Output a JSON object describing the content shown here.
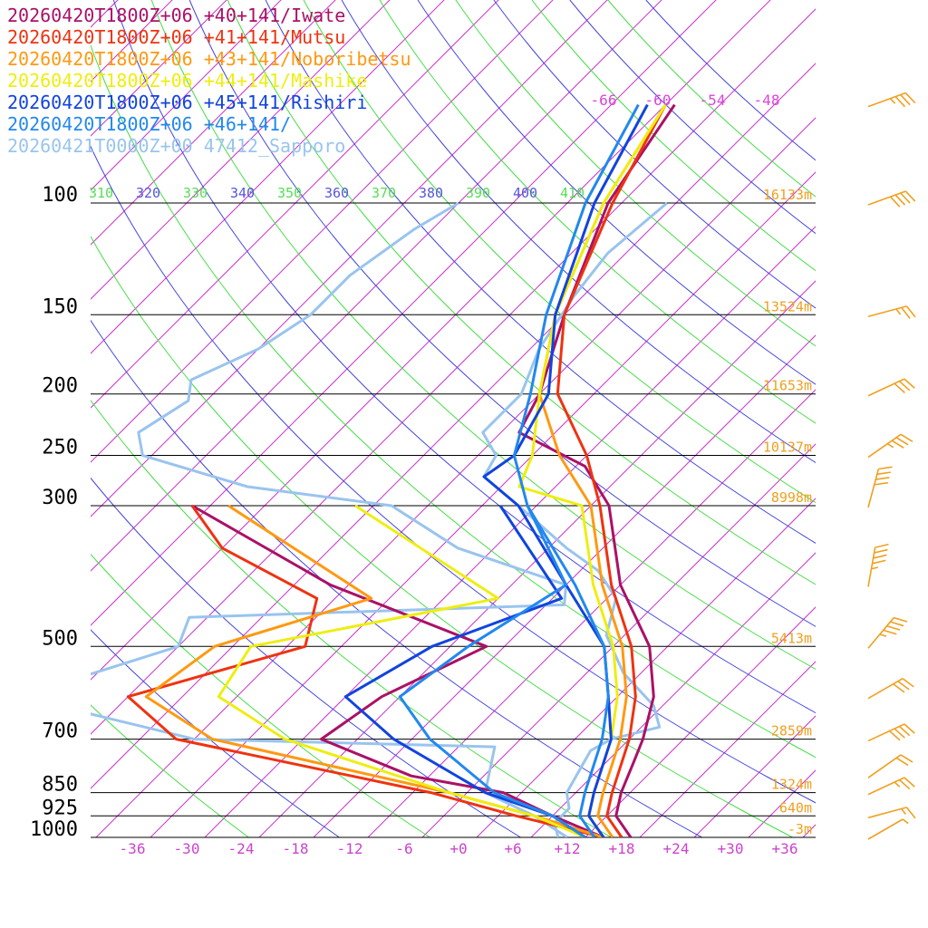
{
  "chart_data": {
    "type": "line",
    "title": "",
    "legend_placement": "top-left",
    "pressure_levels": [
      100,
      150,
      200,
      250,
      300,
      500,
      700,
      850,
      925,
      1000
    ],
    "pressure_axis": "log",
    "temperature_ticks": [
      "-36",
      "-30",
      "-24",
      "-18",
      "-12",
      "-6",
      "+0",
      "+6",
      "+12",
      "+18",
      "+24",
      "+30",
      "+36"
    ],
    "isotherm_top_labels": [
      "-66",
      "-60",
      "-54",
      "-48"
    ],
    "theta_labels": [
      {
        "text": "310",
        "color": "#55dd55"
      },
      {
        "text": "320",
        "color": "#5555dd"
      },
      {
        "text": "330",
        "color": "#55dd55"
      },
      {
        "text": "340",
        "color": "#5555dd"
      },
      {
        "text": "350",
        "color": "#55dd55"
      },
      {
        "text": "360",
        "color": "#5555dd"
      },
      {
        "text": "370",
        "color": "#55dd55"
      },
      {
        "text": "380",
        "color": "#5555dd"
      },
      {
        "text": "390",
        "color": "#55dd55"
      },
      {
        "text": "400",
        "color": "#5555dd"
      },
      {
        "text": "410",
        "color": "#55dd55"
      }
    ],
    "height_labels": [
      {
        "p": 100,
        "text": "16133m"
      },
      {
        "p": 150,
        "text": "13524m"
      },
      {
        "p": 200,
        "text": "11653m"
      },
      {
        "p": 250,
        "text": "10137m"
      },
      {
        "p": 300,
        "text": "8998m"
      },
      {
        "p": 500,
        "text": "5413m"
      },
      {
        "p": 700,
        "text": "2859m"
      },
      {
        "p": 850,
        "text": "1324m"
      },
      {
        "p": 925,
        "text": "640m"
      },
      {
        "p": 1000,
        "text": "-3m"
      }
    ],
    "series": [
      {
        "name": "20260420T1800Z+06 +40+141/Iwate",
        "color": "#aa1166",
        "temperature": [
          [
            70,
            -57
          ],
          [
            100,
            -53.5
          ],
          [
            150,
            -46
          ],
          [
            200,
            -40
          ],
          [
            230,
            -38
          ],
          [
            260,
            -27
          ],
          [
            300,
            -20
          ],
          [
            400,
            -10
          ],
          [
            500,
            0
          ],
          [
            600,
            6
          ],
          [
            700,
            9.5
          ],
          [
            760,
            11
          ],
          [
            850,
            13
          ],
          [
            925,
            15
          ],
          [
            1000,
            19
          ]
        ],
        "dewpoint": [
          [
            300,
            -66
          ],
          [
            400,
            -42
          ],
          [
            500,
            -18
          ],
          [
            600,
            -24
          ],
          [
            700,
            -26
          ],
          [
            800,
            -12
          ],
          [
            850,
            0
          ],
          [
            925,
            8
          ],
          [
            1000,
            16
          ]
        ]
      },
      {
        "name": "20260420T1800Z+06 +41+141/Mutsu",
        "color": "#ee3311",
        "temperature": [
          [
            70,
            -58
          ],
          [
            100,
            -53
          ],
          [
            150,
            -46
          ],
          [
            200,
            -38
          ],
          [
            250,
            -28
          ],
          [
            300,
            -21
          ],
          [
            400,
            -11
          ],
          [
            500,
            -2
          ],
          [
            600,
            4
          ],
          [
            700,
            8
          ],
          [
            850,
            12
          ],
          [
            925,
            14
          ],
          [
            1000,
            18
          ]
        ],
        "dewpoint": [
          [
            300,
            -66
          ],
          [
            350,
            -58
          ],
          [
            420,
            -42
          ],
          [
            500,
            -38
          ],
          [
            600,
            -52
          ],
          [
            700,
            -42
          ],
          [
            850,
            -8
          ],
          [
            925,
            4
          ],
          [
            1000,
            16
          ]
        ]
      },
      {
        "name": "20260420T1800Z+06 +43+141/Noboribetsu",
        "color": "#ff9911",
        "temperature": [
          [
            70,
            -58
          ],
          [
            100,
            -54
          ],
          [
            150,
            -47
          ],
          [
            200,
            -40
          ],
          [
            250,
            -31
          ],
          [
            300,
            -22
          ],
          [
            400,
            -12
          ],
          [
            500,
            -3
          ],
          [
            600,
            3
          ],
          [
            700,
            7
          ],
          [
            850,
            11
          ],
          [
            925,
            13
          ],
          [
            1000,
            17
          ]
        ],
        "dewpoint": [
          [
            300,
            -62
          ],
          [
            420,
            -36
          ],
          [
            500,
            -48
          ],
          [
            600,
            -50
          ],
          [
            700,
            -38
          ],
          [
            850,
            -6
          ],
          [
            925,
            6
          ],
          [
            1000,
            16
          ]
        ]
      },
      {
        "name": "20260420T1800Z+06 +44+141/Mashike",
        "color": "#eeee11",
        "temperature": [
          [
            70,
            -58
          ],
          [
            100,
            -54
          ],
          [
            150,
            -47
          ],
          [
            200,
            -40
          ],
          [
            250,
            -34
          ],
          [
            280,
            -32
          ],
          [
            300,
            -23
          ],
          [
            400,
            -13
          ],
          [
            500,
            -4
          ],
          [
            600,
            2
          ],
          [
            700,
            6
          ],
          [
            850,
            10
          ],
          [
            925,
            12
          ],
          [
            1000,
            16
          ]
        ],
        "dewpoint": [
          [
            300,
            -48
          ],
          [
            420,
            -22
          ],
          [
            500,
            -44
          ],
          [
            600,
            -42
          ],
          [
            700,
            -30
          ],
          [
            850,
            -6
          ],
          [
            925,
            6
          ],
          [
            1000,
            14
          ]
        ]
      },
      {
        "name": "20260420T1800Z+06 +45+141/Rishiri",
        "color": "#1144dd",
        "temperature": [
          [
            70,
            -60
          ],
          [
            100,
            -55
          ],
          [
            150,
            -47
          ],
          [
            200,
            -39
          ],
          [
            250,
            -36
          ],
          [
            270,
            -37
          ],
          [
            300,
            -30
          ],
          [
            400,
            -16
          ],
          [
            500,
            -5
          ],
          [
            600,
            1
          ],
          [
            700,
            6
          ],
          [
            850,
            10
          ],
          [
            925,
            12
          ],
          [
            1000,
            16
          ]
        ],
        "dewpoint": [
          [
            300,
            -32
          ],
          [
            420,
            -15
          ],
          [
            500,
            -24
          ],
          [
            600,
            -28
          ],
          [
            700,
            -18
          ],
          [
            850,
            -2
          ],
          [
            925,
            8
          ],
          [
            1000,
            14
          ]
        ]
      },
      {
        "name": "20260420T1800Z+06 +46+141/",
        "color": "#2288ee",
        "temperature": [
          [
            70,
            -61
          ],
          [
            100,
            -56
          ],
          [
            150,
            -48
          ],
          [
            200,
            -41
          ],
          [
            250,
            -36
          ],
          [
            300,
            -29
          ],
          [
            400,
            -15
          ],
          [
            500,
            -5
          ],
          [
            600,
            1
          ],
          [
            700,
            5
          ],
          [
            850,
            9
          ],
          [
            925,
            11
          ],
          [
            1000,
            15
          ]
        ],
        "dewpoint": [
          [
            300,
            -29
          ],
          [
            400,
            -16
          ],
          [
            500,
            -20
          ],
          [
            600,
            -22
          ],
          [
            700,
            -14
          ],
          [
            850,
            -1
          ],
          [
            925,
            8
          ],
          [
            1000,
            14
          ]
        ]
      },
      {
        "name": "20260421T0000Z+00 47412_Sapporo",
        "color": "#99c4ee",
        "temperature": [
          [
            100,
            -47
          ],
          [
            120,
            -48
          ],
          [
            140,
            -47
          ],
          [
            170,
            -45
          ],
          [
            200,
            -42
          ],
          [
            230,
            -42
          ],
          [
            250,
            -38
          ],
          [
            270,
            -37
          ],
          [
            300,
            -30
          ],
          [
            350,
            -20
          ],
          [
            380,
            -14
          ],
          [
            420,
            -9
          ],
          [
            480,
            -6
          ],
          [
            550,
            0
          ],
          [
            620,
            7
          ],
          [
            670,
            10
          ],
          [
            700,
            6
          ],
          [
            730,
            5
          ],
          [
            850,
            7
          ],
          [
            900,
            9
          ],
          [
            950,
            9
          ],
          [
            1000,
            11
          ]
        ],
        "dewpoint": [
          [
            100,
            -70
          ],
          [
            110,
            -72
          ],
          [
            130,
            -74
          ],
          [
            150,
            -74
          ],
          [
            170,
            -76
          ],
          [
            190,
            -80
          ],
          [
            205,
            -78
          ],
          [
            230,
            -80
          ],
          [
            250,
            -77
          ],
          [
            280,
            -62
          ],
          [
            300,
            -44
          ],
          [
            350,
            -32
          ],
          [
            400,
            -16
          ],
          [
            430,
            -14
          ],
          [
            450,
            -54
          ],
          [
            500,
            -52
          ],
          [
            600,
            -64
          ],
          [
            700,
            -40
          ],
          [
            720,
            -6
          ],
          [
            850,
            -2
          ],
          [
            925,
            6
          ],
          [
            1000,
            12
          ]
        ]
      }
    ],
    "wind_barbs": [
      {
        "p": 70,
        "dir": 250,
        "spd": 35
      },
      {
        "p": 100,
        "dir": 250,
        "spd": 40
      },
      {
        "p": 150,
        "dir": 255,
        "spd": 25
      },
      {
        "p": 200,
        "dir": 245,
        "spd": 30
      },
      {
        "p": 250,
        "dir": 235,
        "spd": 35
      },
      {
        "p": 300,
        "dir": 195,
        "spd": 40
      },
      {
        "p": 400,
        "dir": 190,
        "spd": 45
      },
      {
        "p": 500,
        "dir": 220,
        "spd": 45
      },
      {
        "p": 600,
        "dir": 240,
        "spd": 30
      },
      {
        "p": 700,
        "dir": 245,
        "spd": 40
      },
      {
        "p": 800,
        "dir": 235,
        "spd": 20
      },
      {
        "p": 850,
        "dir": 245,
        "spd": 25
      },
      {
        "p": 925,
        "dir": 255,
        "spd": 15
      },
      {
        "p": 1000,
        "dir": 240,
        "spd": 5
      }
    ]
  }
}
